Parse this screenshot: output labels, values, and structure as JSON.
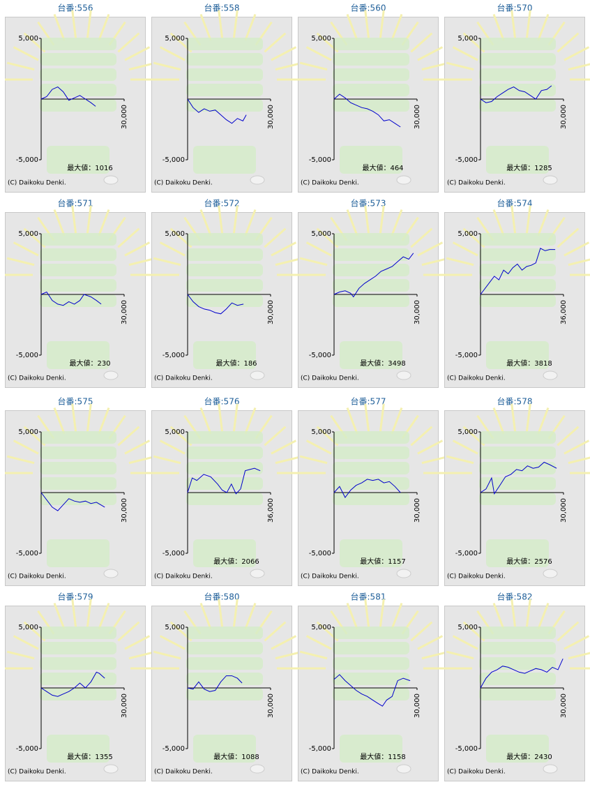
{
  "chart_data": [
    {
      "type": "line",
      "title": "台番:556",
      "max_text": "最大値：1016",
      "copyright": "(C) Daikoku Denki.",
      "color": "#0000cc",
      "xlim": [
        0,
        30000
      ],
      "ylim": [
        -5000,
        5000
      ],
      "xticks": [
        {
          "value": 30000,
          "label": "30,000"
        }
      ],
      "yticks": [
        {
          "value": -5000,
          "label": "-5,000"
        },
        {
          "value": 5000,
          "label": "5,000"
        }
      ],
      "x": [
        0,
        2000,
        4000,
        6000,
        8000,
        10000,
        12000,
        14000,
        16000,
        18000,
        19700
      ],
      "values": [
        0,
        200,
        800,
        1000,
        600,
        -100,
        100,
        300,
        0,
        -300,
        -600
      ]
    },
    {
      "type": "line",
      "title": "台番:558",
      "copyright": "(C) Daikoku Denki.",
      "color": "#0000cc",
      "xlim": [
        0,
        30000
      ],
      "ylim": [
        -5000,
        5000
      ],
      "xticks": [
        {
          "value": 30000,
          "label": "30,000"
        }
      ],
      "yticks": [
        {
          "value": -5000,
          "label": "-5,000"
        },
        {
          "value": 5000,
          "label": "5,000"
        }
      ],
      "x": [
        0,
        2000,
        4000,
        6000,
        8000,
        10000,
        12000,
        14000,
        16000,
        18000,
        20000,
        21200
      ],
      "values": [
        0,
        -700,
        -1100,
        -800,
        -1000,
        -900,
        -1300,
        -1700,
        -2000,
        -1600,
        -1800,
        -1300
      ]
    },
    {
      "type": "line",
      "title": "台番:560",
      "max_text": "最大値：464",
      "copyright": "(C) Daikoku Denki.",
      "color": "#0000cc",
      "xlim": [
        0,
        30000
      ],
      "ylim": [
        -5000,
        5000
      ],
      "xticks": [
        {
          "value": 30000,
          "label": "30,000"
        }
      ],
      "yticks": [
        {
          "value": -5000,
          "label": "-5,000"
        },
        {
          "value": 5000,
          "label": "5,000"
        }
      ],
      "x": [
        0,
        2000,
        4000,
        6000,
        8000,
        10000,
        12000,
        14000,
        16000,
        18000,
        20000,
        22000,
        24000
      ],
      "values": [
        0,
        400,
        100,
        -300,
        -500,
        -700,
        -800,
        -1000,
        -1300,
        -1800,
        -1700,
        -2000,
        -2300
      ]
    },
    {
      "type": "line",
      "title": "台番:570",
      "max_text": "最大値：1285",
      "copyright": "(C) Daikoku Denki.",
      "color": "#0000cc",
      "xlim": [
        0,
        30000
      ],
      "ylim": [
        -5000,
        5000
      ],
      "xticks": [
        {
          "value": 30000,
          "label": "30,000"
        }
      ],
      "yticks": [
        {
          "value": -5000,
          "label": "-5,000"
        },
        {
          "value": 5000,
          "label": "5,000"
        }
      ],
      "x": [
        0,
        2000,
        4000,
        6000,
        8000,
        10000,
        12000,
        14000,
        16000,
        18000,
        20000,
        22000,
        24000,
        25700
      ],
      "values": [
        0,
        -300,
        -200,
        200,
        500,
        800,
        1000,
        700,
        600,
        300,
        0,
        700,
        800,
        1100
      ]
    },
    {
      "type": "line",
      "title": "台番:571",
      "max_text": "最大値：230",
      "copyright": "(C) Daikoku Denki.",
      "color": "#0000cc",
      "xlim": [
        0,
        30000
      ],
      "ylim": [
        -5000,
        5000
      ],
      "xticks": [
        {
          "value": 30000,
          "label": "30,000"
        }
      ],
      "yticks": [
        {
          "value": -5000,
          "label": "-5,000"
        },
        {
          "value": 5000,
          "label": "5,000"
        }
      ],
      "x": [
        0,
        2000,
        4000,
        6000,
        8000,
        10000,
        12000,
        14000,
        15500,
        18000,
        20000,
        21700
      ],
      "values": [
        0,
        200,
        -500,
        -800,
        -900,
        -600,
        -800,
        -500,
        0,
        -200,
        -500,
        -800
      ]
    },
    {
      "type": "line",
      "title": "台番:572",
      "max_text": "最大値：186",
      "copyright": "(C) Daikoku Denki.",
      "color": "#0000cc",
      "xlim": [
        0,
        30000
      ],
      "ylim": [
        -5000,
        5000
      ],
      "xticks": [
        {
          "value": 30000,
          "label": "30,000"
        }
      ],
      "yticks": [
        {
          "value": -5000,
          "label": "-5,000"
        },
        {
          "value": 5000,
          "label": "5,000"
        }
      ],
      "x": [
        0,
        2000,
        4000,
        6000,
        8000,
        10000,
        12000,
        14000,
        16000,
        18000,
        20200
      ],
      "values": [
        0,
        -600,
        -1000,
        -1200,
        -1300,
        -1500,
        -1600,
        -1200,
        -700,
        -900,
        -800
      ]
    },
    {
      "type": "line",
      "title": "台番:573",
      "max_text": "最大値：3498",
      "copyright": "(C) Daikoku Denki.",
      "color": "#0000cc",
      "xlim": [
        0,
        30000
      ],
      "ylim": [
        -5000,
        5000
      ],
      "xticks": [
        {
          "value": 30000,
          "label": "30,000"
        }
      ],
      "yticks": [
        {
          "value": -5000,
          "label": "-5,000"
        },
        {
          "value": 5000,
          "label": "5,000"
        }
      ],
      "x": [
        0,
        2000,
        4000,
        6000,
        7000,
        9000,
        11000,
        13000,
        15000,
        17000,
        19000,
        21000,
        23000,
        25000,
        27000,
        28700
      ],
      "values": [
        0,
        200,
        300,
        100,
        -200,
        500,
        900,
        1200,
        1500,
        1900,
        2100,
        2300,
        2700,
        3100,
        2900,
        3400
      ]
    },
    {
      "type": "line",
      "title": "台番:574",
      "max_text": "最大値：3818",
      "copyright": "(C) Daikoku Denki.",
      "color": "#0000cc",
      "xlim": [
        0,
        36000
      ],
      "ylim": [
        -5000,
        5000
      ],
      "xticks": [
        {
          "value": 36000,
          "label": "36,000"
        }
      ],
      "yticks": [
        {
          "value": -5000,
          "label": "-5,000"
        },
        {
          "value": 5000,
          "label": "5,000"
        }
      ],
      "x": [
        0,
        2000,
        4000,
        6000,
        8000,
        10000,
        12000,
        14000,
        16000,
        18000,
        20000,
        22000,
        24000,
        26000,
        28000,
        30000,
        32400
      ],
      "values": [
        0,
        500,
        1000,
        1500,
        1200,
        2000,
        1700,
        2200,
        2500,
        2000,
        2300,
        2400,
        2600,
        3800,
        3600,
        3700,
        3700
      ]
    },
    {
      "type": "line",
      "title": "台番:575",
      "copyright": "(C) Daikoku Denki.",
      "color": "#0000cc",
      "xlim": [
        0,
        30000
      ],
      "ylim": [
        -5000,
        5000
      ],
      "xticks": [
        {
          "value": 30000,
          "label": "30,000"
        }
      ],
      "yticks": [
        {
          "value": -5000,
          "label": "-5,000"
        },
        {
          "value": 5000,
          "label": "5,000"
        }
      ],
      "x": [
        0,
        2000,
        4000,
        6000,
        8000,
        10000,
        12000,
        14000,
        16000,
        18000,
        20000,
        23000
      ],
      "values": [
        0,
        -600,
        -1200,
        -1500,
        -1000,
        -500,
        -700,
        -800,
        -700,
        -900,
        -800,
        -1200
      ]
    },
    {
      "type": "line",
      "title": "台番:576",
      "max_text": "最大値：2066",
      "copyright": "(C) Daikoku Denki.",
      "color": "#0000cc",
      "xlim": [
        0,
        36000
      ],
      "ylim": [
        -5000,
        5000
      ],
      "xticks": [
        {
          "value": 36000,
          "label": "36,000"
        }
      ],
      "yticks": [
        {
          "value": -5000,
          "label": "-5,000"
        },
        {
          "value": 5000,
          "label": "5,000"
        }
      ],
      "x": [
        0,
        2000,
        4000,
        7000,
        10000,
        13000,
        15000,
        17000,
        19000,
        21000,
        23000,
        25000,
        27000,
        29000,
        31500
      ],
      "values": [
        0,
        1200,
        1000,
        1500,
        1300,
        700,
        200,
        0,
        700,
        -100,
        300,
        1800,
        1900,
        2000,
        1800
      ]
    },
    {
      "type": "line",
      "title": "台番:577",
      "max_text": "最大値：1157",
      "copyright": "(C) Daikoku Denki.",
      "color": "#0000cc",
      "xlim": [
        0,
        30000
      ],
      "ylim": [
        -5000,
        5000
      ],
      "xticks": [
        {
          "value": 30000,
          "label": "30,000"
        }
      ],
      "yticks": [
        {
          "value": -5000,
          "label": "-5,000"
        },
        {
          "value": 5000,
          "label": "5,000"
        }
      ],
      "x": [
        0,
        2000,
        4000,
        6000,
        8000,
        10000,
        12000,
        14000,
        16000,
        18000,
        20000,
        22000,
        24000
      ],
      "values": [
        0,
        500,
        -400,
        200,
        600,
        800,
        1100,
        1000,
        1100,
        800,
        900,
        500,
        0
      ]
    },
    {
      "type": "line",
      "title": "台番:578",
      "max_text": "最大値：2576",
      "copyright": "(C) Daikoku Denki.",
      "color": "#0000cc",
      "xlim": [
        0,
        30000
      ],
      "ylim": [
        -5000,
        5000
      ],
      "xticks": [
        {
          "value": 30000,
          "label": "30,000"
        }
      ],
      "yticks": [
        {
          "value": -5000,
          "label": "-5,000"
        },
        {
          "value": 5000,
          "label": "5,000"
        }
      ],
      "x": [
        0,
        2000,
        4000,
        5000,
        7000,
        9000,
        11000,
        13000,
        15000,
        17000,
        19000,
        21000,
        23000,
        25000,
        27500
      ],
      "values": [
        0,
        300,
        1200,
        -100,
        600,
        1300,
        1500,
        1900,
        1800,
        2200,
        2000,
        2100,
        2500,
        2300,
        2000
      ]
    },
    {
      "type": "line",
      "title": "台番:579",
      "max_text": "最大値：1355",
      "copyright": "(C) Daikoku Denki.",
      "color": "#0000cc",
      "xlim": [
        0,
        30000
      ],
      "ylim": [
        -5000,
        5000
      ],
      "xticks": [
        {
          "value": 30000,
          "label": "30,000"
        }
      ],
      "yticks": [
        {
          "value": -5000,
          "label": "-5,000"
        },
        {
          "value": 5000,
          "label": "5,000"
        }
      ],
      "x": [
        0,
        2000,
        4000,
        6000,
        8000,
        10000,
        12000,
        14000,
        16000,
        18000,
        20000,
        21000,
        23000
      ],
      "values": [
        0,
        -300,
        -600,
        -700,
        -500,
        -300,
        0,
        400,
        0,
        500,
        1300,
        1200,
        800
      ]
    },
    {
      "type": "line",
      "title": "台番:580",
      "max_text": "最大値：1088",
      "copyright": "(C) Daikoku Denki.",
      "color": "#0000cc",
      "xlim": [
        0,
        30000
      ],
      "ylim": [
        -5000,
        5000
      ],
      "xticks": [
        {
          "value": 30000,
          "label": "30,000"
        }
      ],
      "yticks": [
        {
          "value": -5000,
          "label": "-5,000"
        },
        {
          "value": 5000,
          "label": "5,000"
        }
      ],
      "x": [
        0,
        2000,
        4000,
        6000,
        8000,
        10000,
        12000,
        14000,
        16000,
        18000,
        19700
      ],
      "values": [
        0,
        -100,
        500,
        -100,
        -300,
        -200,
        500,
        1000,
        1000,
        800,
        400
      ]
    },
    {
      "type": "line",
      "title": "台番:581",
      "max_text": "最大値：1158",
      "copyright": "(C) Daikoku Denki.",
      "color": "#0000cc",
      "xlim": [
        0,
        30000
      ],
      "ylim": [
        -5000,
        5000
      ],
      "xticks": [
        {
          "value": 30000,
          "label": "30,000"
        }
      ],
      "yticks": [
        {
          "value": -5000,
          "label": "-5,000"
        },
        {
          "value": 5000,
          "label": "5,000"
        }
      ],
      "x": [
        0,
        2000,
        4000,
        6000,
        8000,
        10000,
        12000,
        14000,
        16000,
        17500,
        19000,
        21000,
        23000,
        25000,
        27500
      ],
      "values": [
        700,
        1100,
        600,
        200,
        -200,
        -500,
        -700,
        -1000,
        -1300,
        -1500,
        -1000,
        -700,
        600,
        800,
        600
      ]
    },
    {
      "type": "line",
      "title": "台番:582",
      "max_text": "最大値：2430",
      "copyright": "(C) Daikoku Denki.",
      "color": "#0000cc",
      "xlim": [
        0,
        30000
      ],
      "ylim": [
        -5000,
        5000
      ],
      "xticks": [
        {
          "value": 30000,
          "label": "30,000"
        }
      ],
      "yticks": [
        {
          "value": -5000,
          "label": "-5,000"
        },
        {
          "value": 5000,
          "label": "5,000"
        }
      ],
      "x": [
        0,
        2000,
        4000,
        6000,
        8000,
        10000,
        12000,
        14000,
        16000,
        18000,
        20000,
        22000,
        24000,
        26000,
        28000,
        29800
      ],
      "values": [
        0,
        800,
        1300,
        1500,
        1800,
        1700,
        1500,
        1300,
        1200,
        1400,
        1600,
        1500,
        1300,
        1700,
        1500,
        2400
      ]
    }
  ]
}
